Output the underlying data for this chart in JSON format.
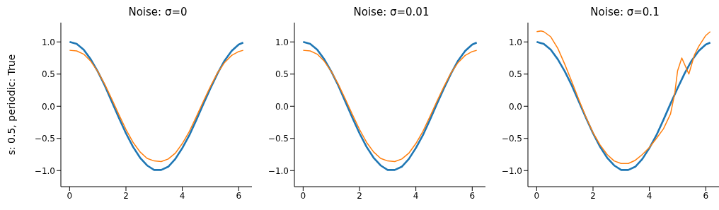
{
  "chart_data": [
    {
      "type": "line",
      "title": "Noise: σ=0",
      "ylabel": "s: 0.5, periodic: True",
      "x": [
        0,
        0.25,
        0.5,
        0.75,
        1,
        1.25,
        1.5,
        1.75,
        2,
        2.25,
        2.5,
        2.75,
        3,
        3.25,
        3.5,
        3.75,
        4,
        4.25,
        4.5,
        4.75,
        5,
        5.25,
        5.5,
        5.75,
        6,
        6.16
      ],
      "series": [
        {
          "color": "#1f77b4",
          "values": [
            1,
            0.97,
            0.88,
            0.73,
            0.54,
            0.32,
            0.07,
            -0.18,
            -0.42,
            -0.63,
            -0.8,
            -0.92,
            -0.99,
            -0.99,
            -0.94,
            -0.82,
            -0.65,
            -0.45,
            -0.21,
            0.04,
            0.28,
            0.51,
            0.71,
            0.86,
            0.96,
            0.99
          ]
        },
        {
          "color": "#ff7f0e",
          "values": [
            0.87,
            0.86,
            0.81,
            0.7,
            0.54,
            0.34,
            0.11,
            -0.13,
            -0.36,
            -0.56,
            -0.71,
            -0.81,
            -0.85,
            -0.86,
            -0.82,
            -0.73,
            -0.58,
            -0.39,
            -0.16,
            0.08,
            0.31,
            0.52,
            0.68,
            0.79,
            0.85,
            0.87
          ]
        }
      ],
      "xlim": [
        -0.31,
        6.47
      ],
      "ylim": [
        -1.25,
        1.3
      ],
      "xticks": [
        0,
        2,
        4,
        6
      ],
      "yticks": [
        {
          "value": -1,
          "label": "−1.0"
        },
        {
          "value": -0.5,
          "label": "−0.5"
        },
        {
          "value": 0,
          "label": "0.0"
        },
        {
          "value": 0.5,
          "label": "0.5"
        },
        {
          "value": 1,
          "label": "1.0"
        }
      ]
    },
    {
      "type": "line",
      "title": "Noise: σ=0.01",
      "x": [
        0,
        0.25,
        0.5,
        0.75,
        1,
        1.25,
        1.5,
        1.75,
        2,
        2.25,
        2.5,
        2.75,
        3,
        3.25,
        3.5,
        3.75,
        4,
        4.25,
        4.5,
        4.75,
        5,
        5.25,
        5.5,
        5.75,
        6,
        6.16
      ],
      "series": [
        {
          "color": "#1f77b4",
          "values": [
            1,
            0.97,
            0.88,
            0.73,
            0.54,
            0.32,
            0.07,
            -0.18,
            -0.42,
            -0.63,
            -0.8,
            -0.92,
            -0.99,
            -0.99,
            -0.94,
            -0.82,
            -0.65,
            -0.45,
            -0.21,
            0.04,
            0.28,
            0.51,
            0.71,
            0.86,
            0.96,
            0.99
          ]
        },
        {
          "color": "#ff7f0e",
          "values": [
            0.87,
            0.86,
            0.81,
            0.7,
            0.54,
            0.34,
            0.11,
            -0.13,
            -0.36,
            -0.56,
            -0.71,
            -0.81,
            -0.85,
            -0.86,
            -0.82,
            -0.73,
            -0.58,
            -0.39,
            -0.16,
            0.08,
            0.31,
            0.52,
            0.68,
            0.79,
            0.85,
            0.87
          ]
        }
      ],
      "xlim": [
        -0.31,
        6.47
      ],
      "ylim": [
        -1.25,
        1.3
      ],
      "xticks": [
        0,
        2,
        4,
        6
      ],
      "yticks": [
        {
          "value": -1,
          "label": "−1.0"
        },
        {
          "value": -0.5,
          "label": "−0.5"
        },
        {
          "value": 0,
          "label": "0.0"
        },
        {
          "value": 0.5,
          "label": "0.5"
        },
        {
          "value": 1,
          "label": "1.0"
        }
      ]
    },
    {
      "type": "line",
      "title": "Noise: σ=0.1",
      "x": [
        0,
        0.25,
        0.5,
        0.75,
        1,
        1.25,
        1.5,
        1.75,
        2,
        2.25,
        2.5,
        2.75,
        3,
        3.25,
        3.5,
        3.75,
        4,
        4.25,
        4.5,
        4.75,
        5,
        5.25,
        5.5,
        5.75,
        6,
        6.16
      ],
      "series": [
        {
          "color": "#1f77b4",
          "values": [
            1,
            0.97,
            0.88,
            0.73,
            0.54,
            0.32,
            0.07,
            -0.18,
            -0.42,
            -0.63,
            -0.8,
            -0.92,
            -0.99,
            -0.99,
            -0.94,
            -0.82,
            -0.65,
            -0.45,
            -0.21,
            0.04,
            0.28,
            0.51,
            0.71,
            0.86,
            0.96,
            0.99
          ]
        },
        {
          "color": "#ff7f0e",
          "x": [
            0,
            0.15,
            0.25,
            0.5,
            0.75,
            1,
            1.25,
            1.5,
            1.75,
            2,
            2.25,
            2.5,
            2.75,
            3,
            3.25,
            3.5,
            3.75,
            4,
            4.25,
            4.5,
            4.75,
            4.9,
            5,
            5.15,
            5.4,
            5.6,
            5.75,
            6,
            6.16
          ],
          "values": [
            1.16,
            1.17,
            1.16,
            1.08,
            0.9,
            0.65,
            0.38,
            0.1,
            -0.17,
            -0.41,
            -0.6,
            -0.75,
            -0.85,
            -0.89,
            -0.89,
            -0.84,
            -0.75,
            -0.64,
            -0.5,
            -0.35,
            -0.12,
            0.2,
            0.55,
            0.75,
            0.5,
            0.8,
            0.93,
            1.1,
            1.16
          ]
        }
      ],
      "xlim": [
        -0.31,
        6.47
      ],
      "ylim": [
        -1.25,
        1.3
      ],
      "xticks": [
        0,
        2,
        4,
        6
      ],
      "yticks": [
        {
          "value": -1,
          "label": "−1.0"
        },
        {
          "value": -0.5,
          "label": "−0.5"
        },
        {
          "value": 0,
          "label": "0.0"
        },
        {
          "value": 0.5,
          "label": "0.5"
        },
        {
          "value": 1,
          "label": "1.0"
        }
      ]
    }
  ]
}
